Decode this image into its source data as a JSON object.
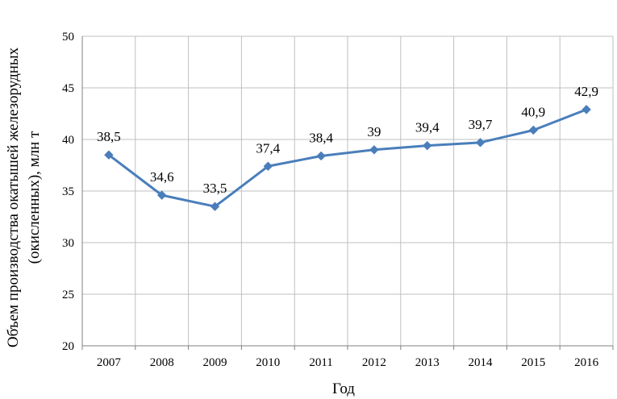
{
  "chart_data": {
    "type": "line",
    "categories": [
      "2007",
      "2008",
      "2009",
      "2010",
      "2011",
      "2012",
      "2013",
      "2014",
      "2015",
      "2016"
    ],
    "series": [
      {
        "values": [
          38.5,
          34.6,
          33.5,
          37.4,
          38.4,
          39,
          39.4,
          39.7,
          40.9,
          42.9
        ],
        "data_labels": [
          "38,5",
          "34,6",
          "33,5",
          "37,4",
          "38,4",
          "39",
          "39,4",
          "39,7",
          "40,9",
          "42,9"
        ],
        "color": "#4a7ebb",
        "marker": "diamond"
      }
    ],
    "xlabel": "Год",
    "ylabel_line1": "Объем производства окатышей железорудных",
    "ylabel_line2": "(окисленных), млн т",
    "ylim": [
      20,
      50
    ],
    "yticks": [
      20,
      25,
      30,
      35,
      40,
      45,
      50
    ],
    "grid": true,
    "legend": "none"
  }
}
